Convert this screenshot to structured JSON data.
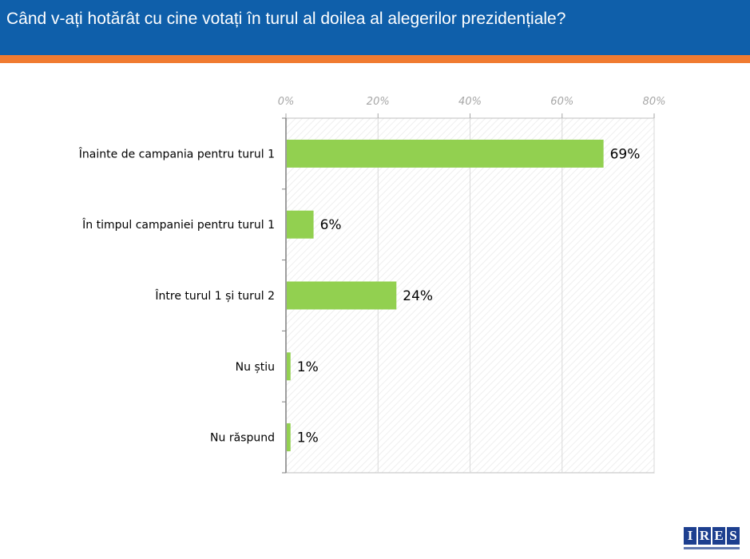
{
  "header": {
    "title": "Când v-ați hotărât cu cine votați în turul al doilea al alegerilor prezidențiale?"
  },
  "colors": {
    "header_bg": "#0f5faa",
    "stripe": "#f07b30",
    "bar": "#92d050"
  },
  "logo": {
    "letters": [
      "I",
      "R",
      "E",
      "S"
    ]
  },
  "chart_data": {
    "type": "bar",
    "orientation": "horizontal",
    "categories": [
      "Înainte de campania pentru turul 1",
      "În timpul campaniei pentru turul 1",
      "Între turul 1 și turul 2",
      "Nu știu",
      "Nu răspund"
    ],
    "values": [
      69,
      6,
      24,
      1,
      1
    ],
    "data_labels": [
      "69%",
      "6%",
      "24%",
      "1%",
      "1%"
    ],
    "xlim": [
      0,
      80
    ],
    "ticks": [
      0,
      20,
      40,
      60,
      80
    ],
    "tick_labels": [
      "0%",
      "20%",
      "40%",
      "60%",
      "80%"
    ],
    "axis_position": "top",
    "grid": true
  }
}
